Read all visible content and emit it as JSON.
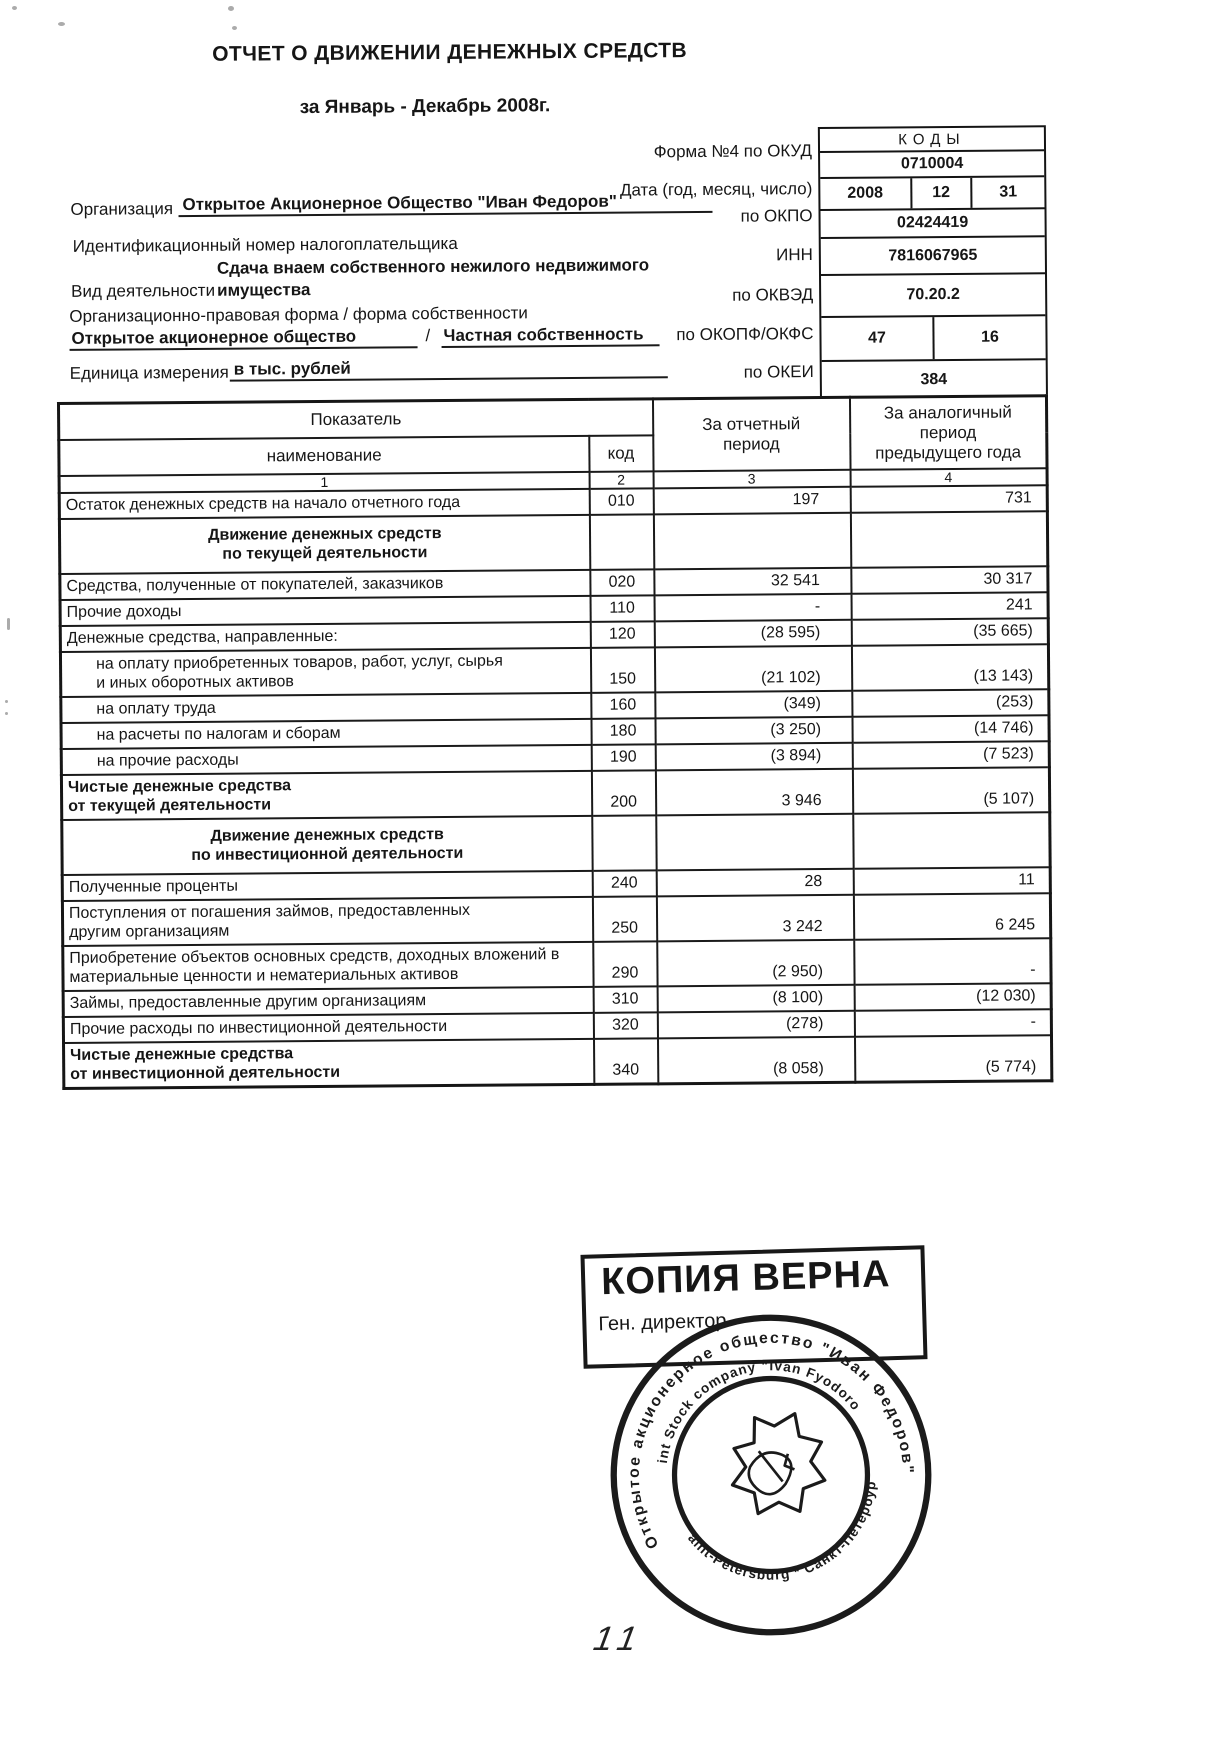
{
  "page": {
    "title": "ОТЧЕТ О ДВИЖЕНИИ ДЕНЕЖНЫХ СРЕДСТВ",
    "subtitle": "за Январь - Декабрь 2008г.",
    "page_number": "11"
  },
  "meta": {
    "form_label": "Форма №4 по ОКУД",
    "date_label": "Дата (год, месяц, число)",
    "org_label": "Организация",
    "org_value": "Открытое Акционерное Общество \"Иван Федоров\"",
    "okpo_label": "по ОКПО",
    "taxpayer_label": "Идентификационный номер налогоплательщика",
    "inn_label": "ИНН",
    "activity_label": "Вид деятельности",
    "activity_value": "Сдача внаем собственного нежилого недвижимого\nимущества",
    "okved_label": "по ОКВЭД",
    "legal_form_label": "Организационно-правовая форма / форма собственности",
    "legal_form_value": "Открытое акционерное общество",
    "separator": "/",
    "ownership_value": "Частная собственность",
    "okopf_label": "по ОКОПФ/ОКФС",
    "unit_label": "Единица измерения",
    "unit_value": "в тыс. рублей",
    "okei_label": "по ОКЕИ"
  },
  "codes": {
    "header": "КОДЫ",
    "okud": "0710004",
    "date_year": "2008",
    "date_month": "12",
    "date_day": "31",
    "okpo": "02424419",
    "inn": "7816067965",
    "okved": "70.20.2",
    "okopf": "47",
    "okfs": "16",
    "okei": "384"
  },
  "table": {
    "header": {
      "indicator": "Показатель",
      "name": "наименование",
      "code": "код",
      "current": "За отчетный\nпериод",
      "previous": "За аналогичный период\nпредыдущего года",
      "col_numbers": [
        "1",
        "2",
        "3",
        "4"
      ]
    },
    "rows": [
      {
        "name": "Остаток денежных средств на начало отчетного года",
        "code": "010",
        "current": "197",
        "previous": "731"
      },
      {
        "type": "section",
        "name": "Движение денежных средств\nпо текущей деятельности"
      },
      {
        "name": "Средства, полученные от покупателей, заказчиков",
        "code": "020",
        "current": "32 541",
        "previous": "30 317"
      },
      {
        "name": "Прочие доходы",
        "code": "110",
        "current": "-",
        "previous": "241"
      },
      {
        "name": "Денежные средства, направленные:",
        "code": "120",
        "current": "(28 595)",
        "previous": "(35 665)"
      },
      {
        "indent": true,
        "name": "на оплату приобретенных товаров, работ, услуг, сырья\nи иных оборотных активов",
        "code": "150",
        "current": "(21 102)",
        "previous": "(13 143)"
      },
      {
        "indent": true,
        "name": "на оплату труда",
        "code": "160",
        "current": "(349)",
        "previous": "(253)"
      },
      {
        "indent": true,
        "name": "на расчеты по налогам и сборам",
        "code": "180",
        "current": "(3 250)",
        "previous": "(14 746)"
      },
      {
        "indent": true,
        "name": "на прочие расходы",
        "code": "190",
        "current": "(3 894)",
        "previous": "(7 523)"
      },
      {
        "bold": true,
        "name": "Чистые денежные средства\nот текущей деятельности",
        "code": "200",
        "current": "3 946",
        "previous": "(5 107)"
      },
      {
        "type": "section",
        "name": "Движение денежных средств\nпо инвестиционной деятельности"
      },
      {
        "name": "Полученные проценты",
        "code": "240",
        "current": "28",
        "previous": "11"
      },
      {
        "name": "Поступления от погашения займов, предоставленных\nдругим организациям",
        "code": "250",
        "current": "3 242",
        "previous": "6 245"
      },
      {
        "name": "Приобретение объектов основных средств, доходных вложений в\nматериальные ценности и нематериальных активов",
        "code": "290",
        "current": "(2 950)",
        "previous": "-"
      },
      {
        "name": "Займы, предоставленные другим организациям",
        "code": "310",
        "current": "(8 100)",
        "previous": "(12 030)"
      },
      {
        "name": "Прочие расходы по инвестиционной деятельности",
        "code": "320",
        "current": "(278)",
        "previous": "-"
      },
      {
        "bold": true,
        "name": "Чистые денежные средства\nот инвестиционной деятельности",
        "code": "340",
        "current": "(8 058)",
        "previous": "(5 774)"
      }
    ]
  },
  "stamp": {
    "copy_text": "КОПИЯ ВЕРНА",
    "signer_label": "Ген. директор",
    "seal_outer_text": "Открытое акционерное общество \"Иван Федоров\"",
    "seal_inner_top_text": "Joint Stock company \"Ivan Fyodorov\"",
    "seal_inner_bottom_text": "Saint-Petersburg * Санкт-Петербург"
  }
}
